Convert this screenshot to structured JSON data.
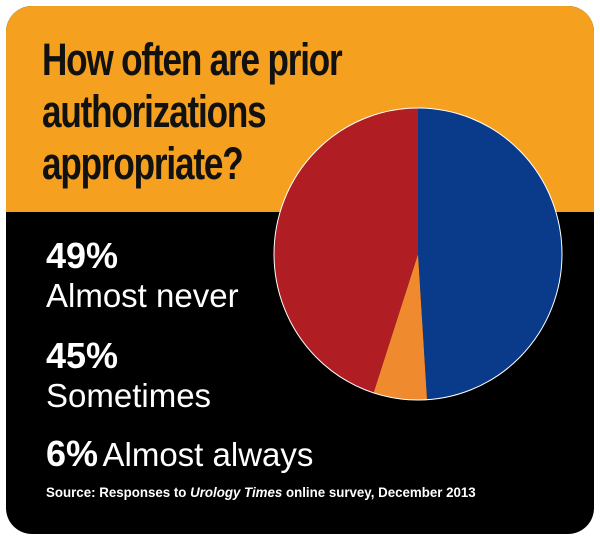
{
  "title": "How often are prior authorizations appropriate?",
  "title_lines": [
    "How often are prior",
    "authorizations",
    "appropriate?"
  ],
  "colors": {
    "header_bg": "#f5a01e",
    "body_bg": "#000000",
    "almost_never": "#0a3a8a",
    "sometimes": "#b01e24",
    "almost_always": "#ef8a2e",
    "pie_edge": "#ffffff"
  },
  "stats": [
    {
      "pct": "49%",
      "label": "Almost never"
    },
    {
      "pct": "45%",
      "label": "Sometimes"
    },
    {
      "pct": "6%",
      "label": "Almost always"
    }
  ],
  "source": {
    "prefix": "Source: Responses to ",
    "publication": "Urology Times",
    "suffix": " online survey, December 2013"
  },
  "chart_data": {
    "type": "pie",
    "title": "How often are prior authorizations appropriate?",
    "categories": [
      "Almost never",
      "Almost always",
      "Sometimes"
    ],
    "values": [
      49,
      6,
      45
    ],
    "unit": "%"
  }
}
